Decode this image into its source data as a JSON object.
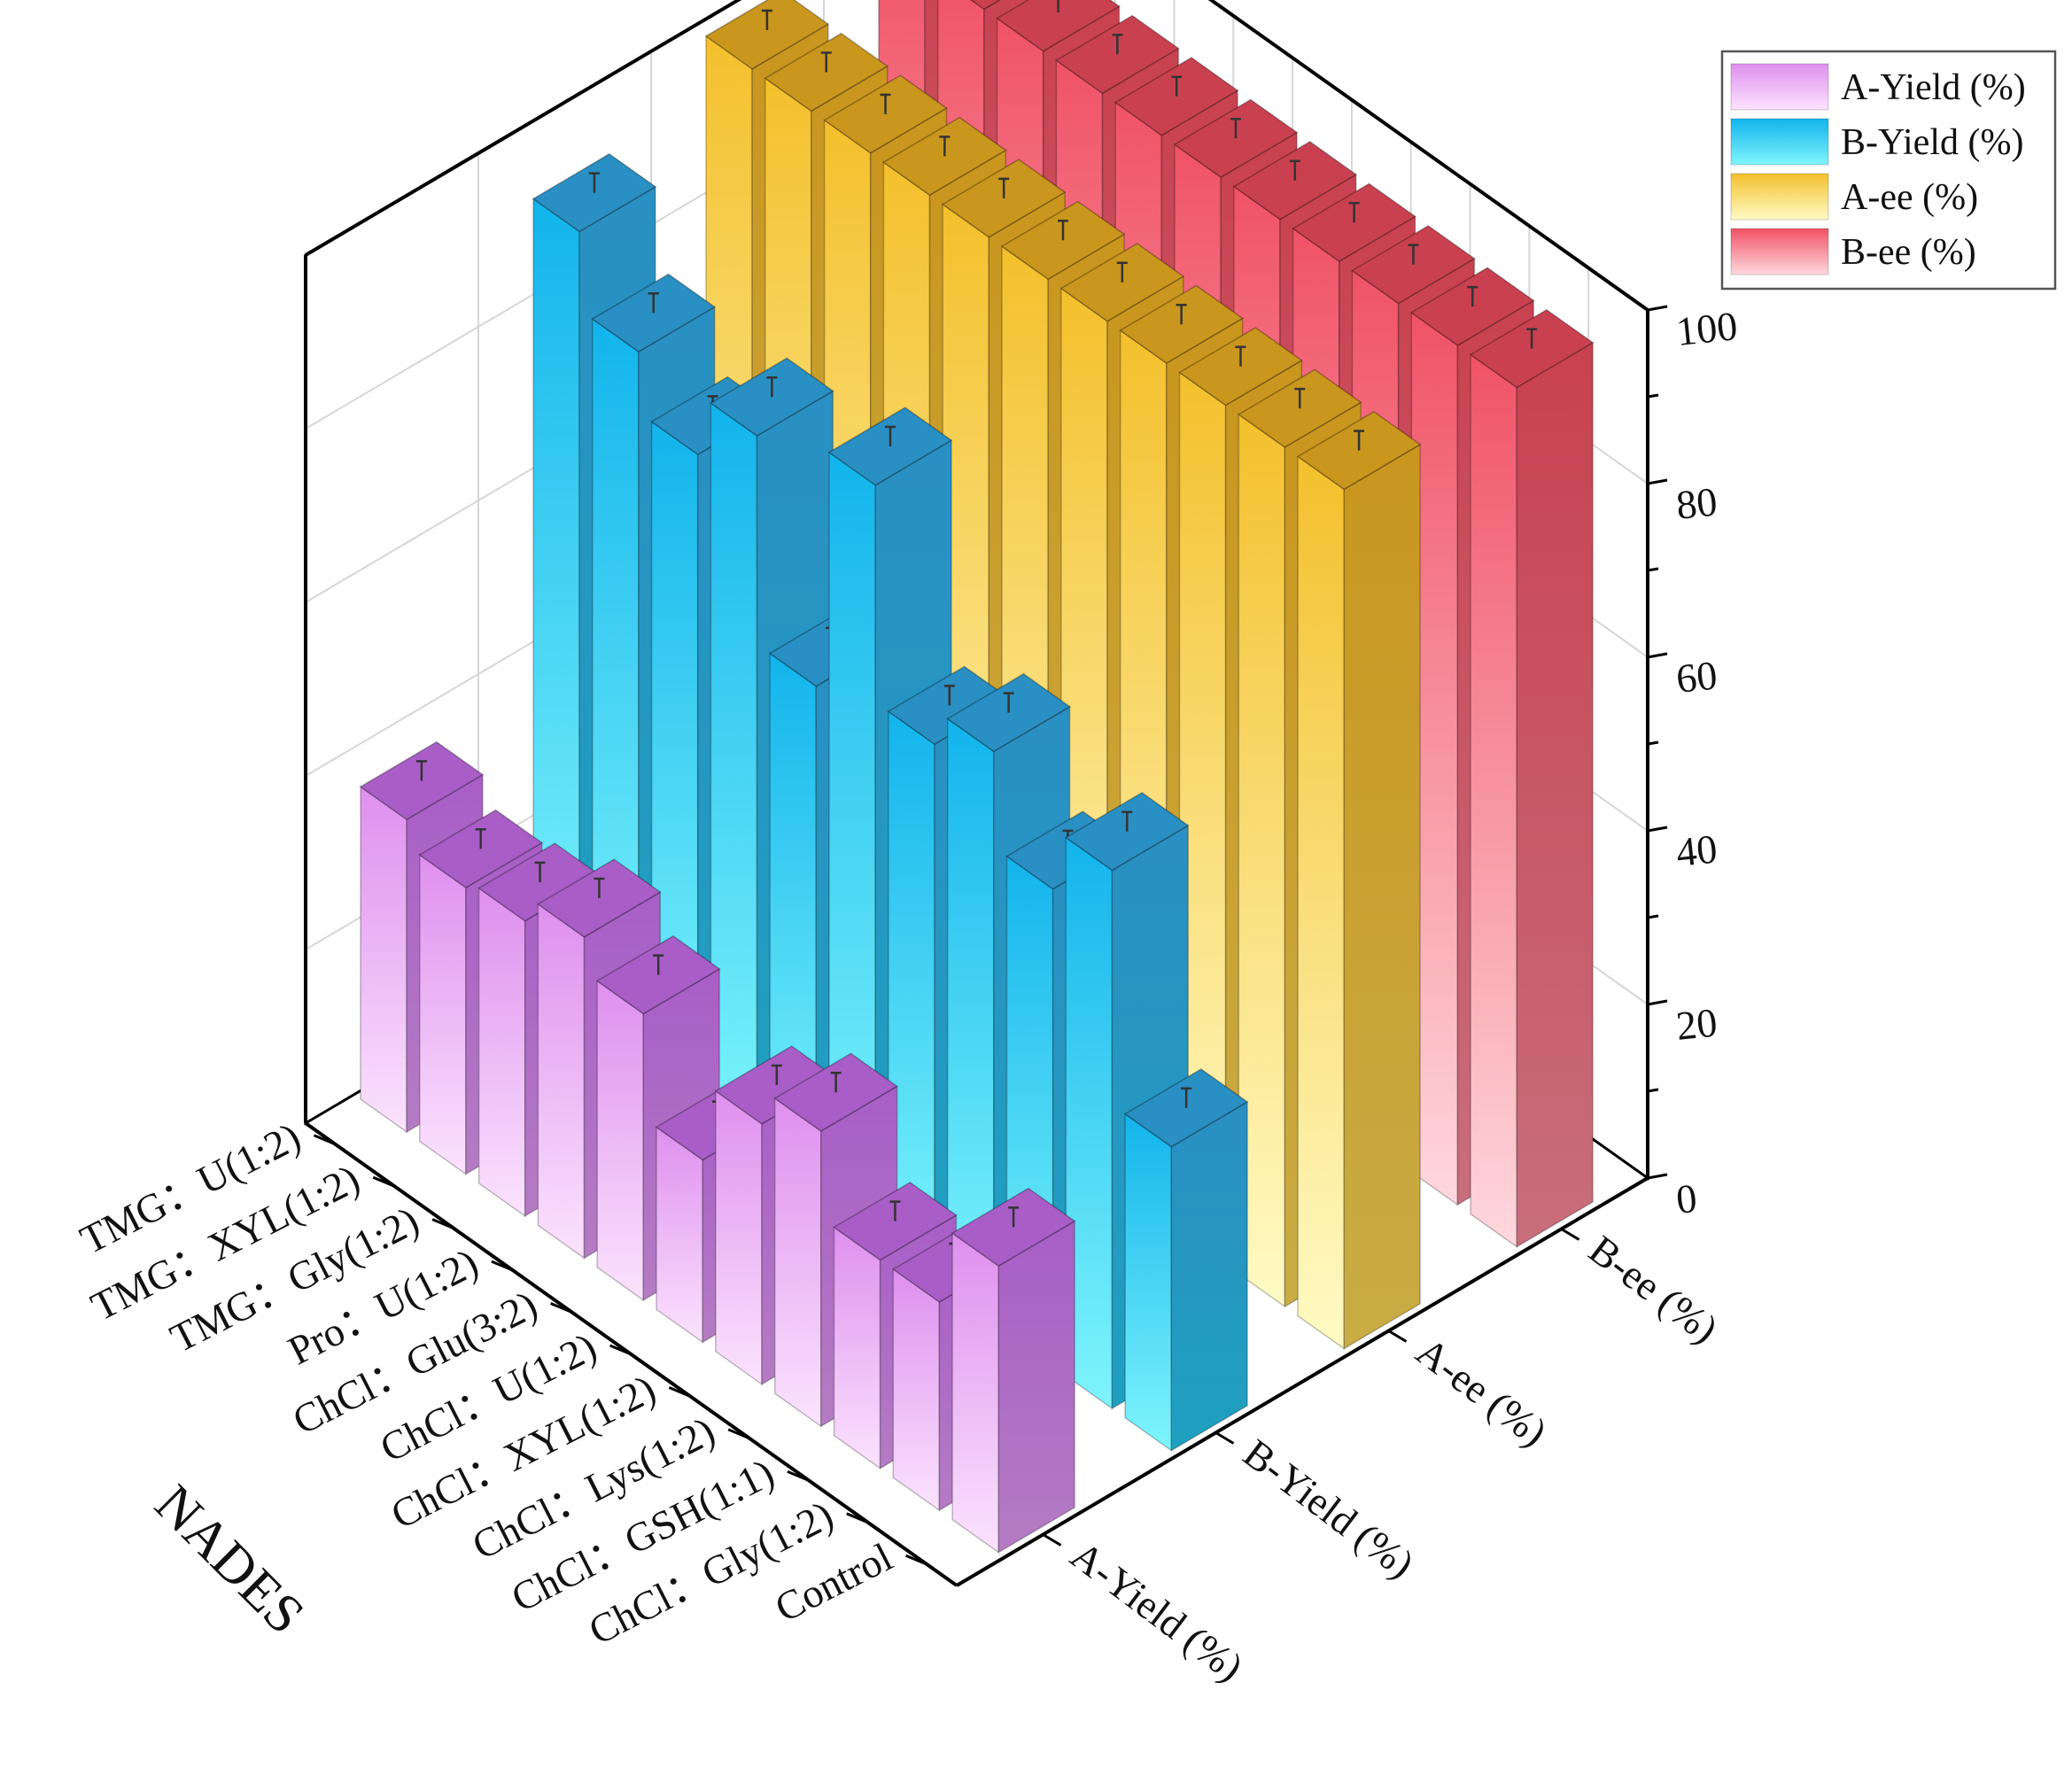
{
  "chart_data": {
    "type": "bar",
    "title": "",
    "xlabel": "NADES",
    "ylabel": "",
    "zlabel": "",
    "ylim": [
      0,
      100
    ],
    "yticks": [
      "0",
      "20",
      "40",
      "60",
      "80",
      "100"
    ],
    "grid": true,
    "legend_position": "top-right",
    "categories": [
      "TMG：U(1:2)",
      "TMG：XYL(1:2)",
      "TMG：Gly(1:2)",
      "Pro：U(1:2)",
      "ChCl：Glu(3:2)",
      "ChCl：U(1:2)",
      "ChCl：XYL(1:2)",
      "ChCl：Lys(1:2)",
      "ChCl：GSH(1:1)",
      "ChCl：Gly(1:2)",
      "Control"
    ],
    "series": [
      {
        "name": "A-Yield (%)",
        "values": [
          36,
          33,
          34,
          37,
          33,
          21,
          30,
          34,
          24,
          24,
          33
        ]
      },
      {
        "name": "B-Yield (%)",
        "values": [
          92,
          83,
          76,
          83,
          59,
          87,
          62,
          66,
          55,
          62,
          35
        ]
      },
      {
        "name": "A-ee (%)",
        "values": [
          99,
          99,
          99,
          99,
          99,
          99,
          99,
          99,
          99,
          99,
          99
        ]
      },
      {
        "name": "B-ee (%)",
        "values": [
          99,
          99,
          99,
          99,
          99,
          99,
          99,
          99,
          99,
          99,
          99
        ]
      }
    ],
    "colors": {
      "A-Yield (%)": {
        "top": "#a85ec6",
        "front_top": "#de8fee",
        "front_bottom": "#fbe3fe",
        "side": "#b47cc4"
      },
      "B-Yield (%)": {
        "top": "#2a8fc2",
        "front_top": "#12b4ec",
        "front_bottom": "#7ff5fc",
        "side": "#1fa0c0"
      },
      "A-ee (%)": {
        "top": "#c9961e",
        "front_top": "#f4c02c",
        "front_bottom": "#fffbc5",
        "side": "#c9ac45"
      },
      "B-ee (%)": {
        "top": "#c94150",
        "front_top": "#f05266",
        "front_bottom": "#ffd8dd",
        "side": "#c86e7c"
      }
    }
  }
}
